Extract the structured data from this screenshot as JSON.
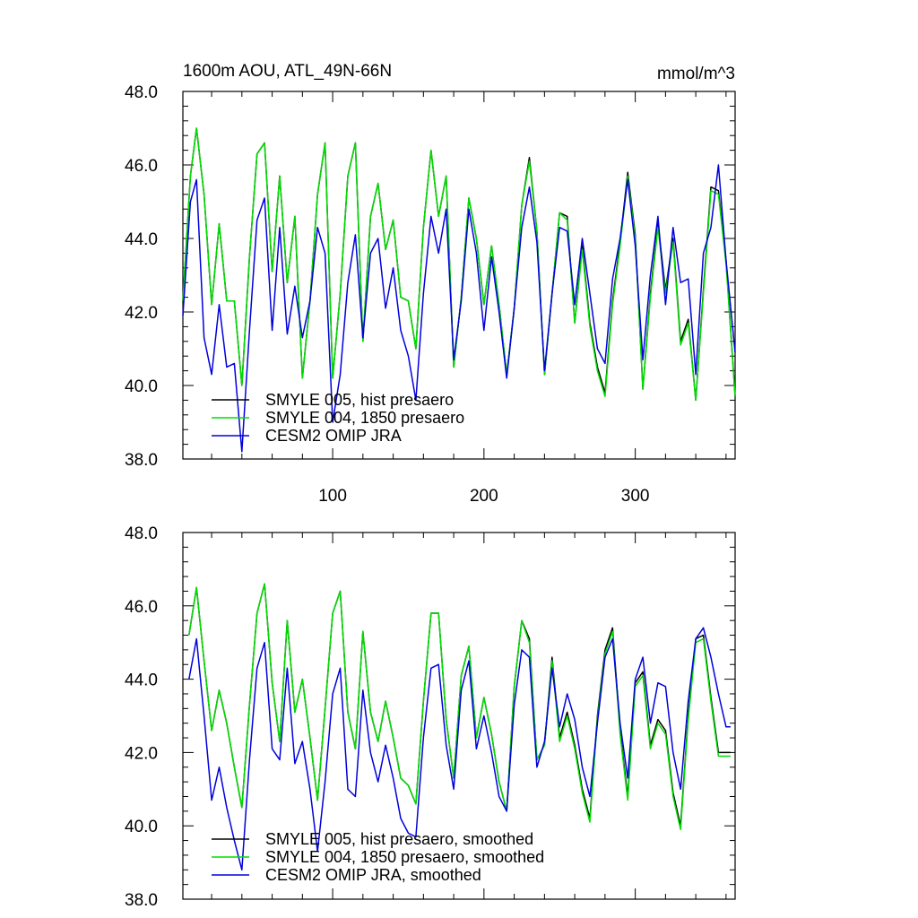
{
  "chart_data": [
    {
      "type": "line",
      "title": "1600m AOU, ATL_49N-66N",
      "units": "mmol/m^3",
      "xlabel": "",
      "ylabel": "",
      "xlim": [
        1,
        366
      ],
      "ylim": [
        38.0,
        48.0
      ],
      "x_ticks": [
        100,
        200,
        300
      ],
      "x_tick_labels": [
        "100",
        "200",
        "300"
      ],
      "y_ticks": [
        38.0,
        40.0,
        42.0,
        44.0,
        46.0,
        48.0
      ],
      "y_tick_labels": [
        "38.0",
        "40.0",
        "42.0",
        "44.0",
        "46.0",
        "48.0"
      ],
      "grid": false,
      "legend_position": "bottom-left",
      "series": [
        {
          "name": "SMYLE 005, hist presaero",
          "color": "#000000",
          "x": [
            1,
            6,
            10,
            15,
            20,
            25,
            30,
            35,
            40,
            45,
            50,
            55,
            60,
            65,
            70,
            75,
            80,
            85,
            90,
            95,
            100,
            105,
            110,
            115,
            120,
            125,
            130,
            135,
            140,
            145,
            150,
            155,
            160,
            165,
            170,
            175,
            180,
            185,
            190,
            195,
            200,
            205,
            210,
            215,
            220,
            225,
            230,
            235,
            240,
            245,
            250,
            255,
            260,
            265,
            270,
            275,
            280,
            285,
            290,
            295,
            300,
            305,
            310,
            315,
            320,
            325,
            330,
            335,
            340,
            345,
            350,
            355,
            360,
            366
          ],
          "values": [
            42.3,
            45.7,
            47.0,
            45.2,
            42.2,
            44.4,
            42.3,
            42.3,
            40.0,
            43.5,
            46.3,
            46.6,
            43.1,
            45.7,
            42.8,
            44.6,
            40.2,
            42.3,
            45.2,
            46.6,
            40.2,
            42.5,
            45.7,
            46.6,
            41.2,
            44.6,
            45.5,
            43.7,
            44.5,
            42.4,
            42.3,
            41.0,
            44.3,
            46.4,
            44.6,
            45.7,
            40.5,
            42.4,
            45.1,
            44.0,
            42.2,
            43.8,
            42.2,
            40.3,
            42.1,
            44.9,
            46.2,
            44.2,
            40.3,
            42.5,
            44.7,
            44.6,
            41.7,
            43.8,
            41.7,
            40.5,
            39.8,
            42.3,
            43.9,
            45.8,
            44.1,
            39.9,
            42.5,
            44.4,
            42.6,
            44.0,
            41.2,
            41.8,
            39.6,
            42.6,
            45.4,
            45.3,
            43.4,
            39.7
          ]
        },
        {
          "name": "SMYLE 004, 1850 presaero",
          "color": "#00dd00",
          "x": [
            1,
            6,
            10,
            15,
            20,
            25,
            30,
            35,
            40,
            45,
            50,
            55,
            60,
            65,
            70,
            75,
            80,
            85,
            90,
            95,
            100,
            105,
            110,
            115,
            120,
            125,
            130,
            135,
            140,
            145,
            150,
            155,
            160,
            165,
            170,
            175,
            180,
            185,
            190,
            195,
            200,
            205,
            210,
            215,
            220,
            225,
            230,
            235,
            240,
            245,
            250,
            255,
            260,
            265,
            270,
            275,
            280,
            285,
            290,
            295,
            300,
            305,
            310,
            315,
            320,
            325,
            330,
            335,
            340,
            345,
            350,
            355,
            360,
            366
          ],
          "values": [
            42.3,
            45.7,
            47.0,
            45.2,
            42.2,
            44.4,
            42.3,
            42.3,
            40.0,
            43.5,
            46.3,
            46.6,
            43.1,
            45.7,
            42.8,
            44.6,
            40.2,
            42.3,
            45.2,
            46.6,
            40.2,
            42.5,
            45.7,
            46.6,
            41.2,
            44.6,
            45.5,
            43.7,
            44.5,
            42.4,
            42.3,
            41.0,
            44.3,
            46.4,
            44.6,
            45.7,
            40.5,
            42.4,
            45.1,
            44.0,
            42.2,
            43.8,
            42.2,
            40.3,
            42.1,
            44.9,
            46.1,
            44.2,
            40.3,
            42.5,
            44.7,
            44.5,
            41.7,
            43.7,
            41.6,
            40.4,
            39.7,
            42.2,
            43.8,
            45.7,
            44.0,
            39.9,
            42.4,
            44.3,
            42.5,
            43.9,
            41.1,
            41.7,
            39.6,
            42.5,
            45.3,
            45.2,
            43.3,
            39.7
          ]
        },
        {
          "name": "CESM2 OMIP JRA",
          "color": "#0000dd",
          "x": [
            1,
            6,
            10,
            15,
            20,
            25,
            30,
            35,
            40,
            45,
            50,
            55,
            60,
            65,
            70,
            75,
            80,
            85,
            90,
            95,
            100,
            105,
            110,
            115,
            120,
            125,
            130,
            135,
            140,
            145,
            150,
            155,
            160,
            165,
            170,
            175,
            180,
            185,
            190,
            195,
            200,
            205,
            210,
            215,
            220,
            225,
            230,
            235,
            240,
            245,
            250,
            255,
            260,
            265,
            270,
            275,
            280,
            285,
            290,
            295,
            300,
            305,
            310,
            315,
            320,
            325,
            330,
            335,
            340,
            345,
            350,
            355,
            360,
            366
          ],
          "values": [
            41.9,
            45.0,
            45.6,
            41.3,
            40.3,
            42.2,
            40.5,
            40.6,
            38.2,
            41.5,
            44.5,
            45.1,
            41.5,
            44.3,
            41.4,
            42.7,
            41.3,
            42.3,
            44.3,
            43.6,
            39.0,
            40.3,
            42.8,
            44.1,
            41.3,
            43.6,
            44.0,
            42.1,
            43.2,
            41.5,
            40.8,
            39.6,
            42.5,
            44.6,
            43.6,
            44.8,
            40.7,
            42.3,
            44.8,
            43.6,
            41.5,
            43.5,
            42.0,
            40.2,
            42.1,
            44.3,
            45.4,
            43.9,
            40.4,
            42.5,
            44.3,
            44.2,
            42.2,
            44.0,
            42.5,
            41.0,
            40.6,
            42.9,
            44.0,
            45.6,
            43.8,
            40.7,
            43.0,
            44.6,
            42.2,
            44.3,
            42.8,
            42.9,
            40.3,
            43.6,
            44.3,
            46.0,
            43.4,
            40.9
          ]
        }
      ]
    },
    {
      "type": "line",
      "title": "",
      "xlabel": "",
      "ylabel": "",
      "xlim": [
        1,
        366
      ],
      "ylim": [
        38.0,
        48.0
      ],
      "x_ticks": [
        100,
        200,
        300
      ],
      "y_ticks": [
        38.0,
        40.0,
        42.0,
        44.0,
        46.0,
        48.0
      ],
      "y_tick_labels": [
        "38.0",
        "40.0",
        "42.0",
        "44.0",
        "46.0",
        "48.0"
      ],
      "grid": false,
      "legend_position": "bottom-left",
      "series": [
        {
          "name": "SMYLE 005, hist presaero, smoothed",
          "color": "#000000",
          "x": [
            5,
            10,
            15,
            20,
            25,
            30,
            35,
            40,
            45,
            50,
            55,
            60,
            65,
            70,
            75,
            80,
            85,
            90,
            95,
            100,
            105,
            110,
            115,
            120,
            125,
            130,
            135,
            140,
            145,
            150,
            155,
            160,
            165,
            170,
            175,
            180,
            185,
            190,
            195,
            200,
            205,
            210,
            215,
            220,
            225,
            230,
            235,
            240,
            245,
            250,
            255,
            260,
            265,
            270,
            275,
            280,
            285,
            290,
            295,
            300,
            305,
            310,
            315,
            320,
            325,
            330,
            335,
            340,
            345,
            350,
            355,
            360,
            363
          ],
          "values": [
            45.2,
            46.5,
            44.5,
            42.6,
            43.7,
            42.8,
            41.6,
            40.5,
            43.3,
            45.8,
            46.6,
            43.9,
            42.3,
            45.6,
            43.1,
            44.0,
            42.4,
            40.7,
            43.2,
            45.8,
            46.4,
            43.1,
            42.1,
            45.3,
            43.1,
            42.3,
            43.4,
            42.4,
            41.3,
            41.1,
            40.6,
            43.4,
            45.8,
            45.8,
            42.9,
            41.3,
            44.1,
            44.9,
            42.4,
            43.5,
            42.5,
            41.2,
            40.4,
            43.8,
            45.6,
            45.1,
            41.8,
            42.2,
            44.6,
            42.4,
            43.1,
            42.2,
            41.0,
            40.2,
            43.0,
            44.8,
            45.4,
            42.6,
            40.8,
            43.9,
            44.2,
            42.2,
            42.9,
            42.6,
            40.9,
            40.0,
            43.0,
            45.1,
            45.2,
            43.5,
            42.0,
            42.0,
            42.0
          ]
        },
        {
          "name": "SMYLE 004, 1850 presaero, smoothed",
          "color": "#00dd00",
          "x": [
            5,
            10,
            15,
            20,
            25,
            30,
            35,
            40,
            45,
            50,
            55,
            60,
            65,
            70,
            75,
            80,
            85,
            90,
            95,
            100,
            105,
            110,
            115,
            120,
            125,
            130,
            135,
            140,
            145,
            150,
            155,
            160,
            165,
            170,
            175,
            180,
            185,
            190,
            195,
            200,
            205,
            210,
            215,
            220,
            225,
            230,
            235,
            240,
            245,
            250,
            255,
            260,
            265,
            270,
            275,
            280,
            285,
            290,
            295,
            300,
            305,
            310,
            315,
            320,
            325,
            330,
            335,
            340,
            345,
            350,
            355,
            360,
            363
          ],
          "values": [
            45.2,
            46.5,
            44.5,
            42.6,
            43.7,
            42.8,
            41.6,
            40.5,
            43.3,
            45.8,
            46.6,
            43.9,
            42.3,
            45.6,
            43.1,
            44.0,
            42.4,
            40.7,
            43.2,
            45.8,
            46.4,
            43.1,
            42.1,
            45.3,
            43.1,
            42.3,
            43.4,
            42.4,
            41.3,
            41.1,
            40.6,
            43.4,
            45.8,
            45.8,
            42.9,
            41.3,
            44.1,
            44.9,
            42.4,
            43.5,
            42.5,
            41.2,
            40.4,
            43.8,
            45.6,
            45.0,
            41.8,
            42.2,
            44.5,
            42.3,
            43.0,
            42.1,
            40.9,
            40.1,
            42.9,
            44.7,
            45.3,
            42.5,
            40.7,
            43.8,
            44.1,
            42.1,
            42.8,
            42.5,
            40.8,
            39.9,
            42.9,
            45.0,
            45.1,
            43.4,
            41.9,
            41.9,
            41.9
          ]
        },
        {
          "name": "CESM2 OMIP JRA, smoothed",
          "color": "#0000dd",
          "x": [
            5,
            10,
            15,
            20,
            25,
            30,
            35,
            40,
            45,
            50,
            55,
            60,
            65,
            70,
            75,
            80,
            85,
            90,
            95,
            100,
            105,
            110,
            115,
            120,
            125,
            130,
            135,
            140,
            145,
            150,
            155,
            160,
            165,
            170,
            175,
            180,
            185,
            190,
            195,
            200,
            205,
            210,
            215,
            220,
            225,
            230,
            235,
            240,
            245,
            250,
            255,
            260,
            265,
            270,
            275,
            280,
            285,
            290,
            295,
            300,
            305,
            310,
            315,
            320,
            325,
            330,
            335,
            340,
            345,
            350,
            355,
            360,
            363
          ],
          "values": [
            44.0,
            45.1,
            43.0,
            40.7,
            41.6,
            40.5,
            39.6,
            38.8,
            41.8,
            44.3,
            45.0,
            42.1,
            41.8,
            44.3,
            41.7,
            42.3,
            41.0,
            39.3,
            41.2,
            43.6,
            44.3,
            41.0,
            40.8,
            43.7,
            42.0,
            41.2,
            42.2,
            41.3,
            40.2,
            39.8,
            39.7,
            42.4,
            44.3,
            44.4,
            42.2,
            41.0,
            43.7,
            44.5,
            42.1,
            43.0,
            42.0,
            40.8,
            40.4,
            43.3,
            44.8,
            44.6,
            41.6,
            42.3,
            44.3,
            42.7,
            43.6,
            42.9,
            41.6,
            40.8,
            42.8,
            44.6,
            45.1,
            42.8,
            41.3,
            44.0,
            44.6,
            42.8,
            43.9,
            43.8,
            42.0,
            41.0,
            43.4,
            45.1,
            45.4,
            44.6,
            43.6,
            42.7,
            42.7
          ]
        }
      ]
    }
  ]
}
